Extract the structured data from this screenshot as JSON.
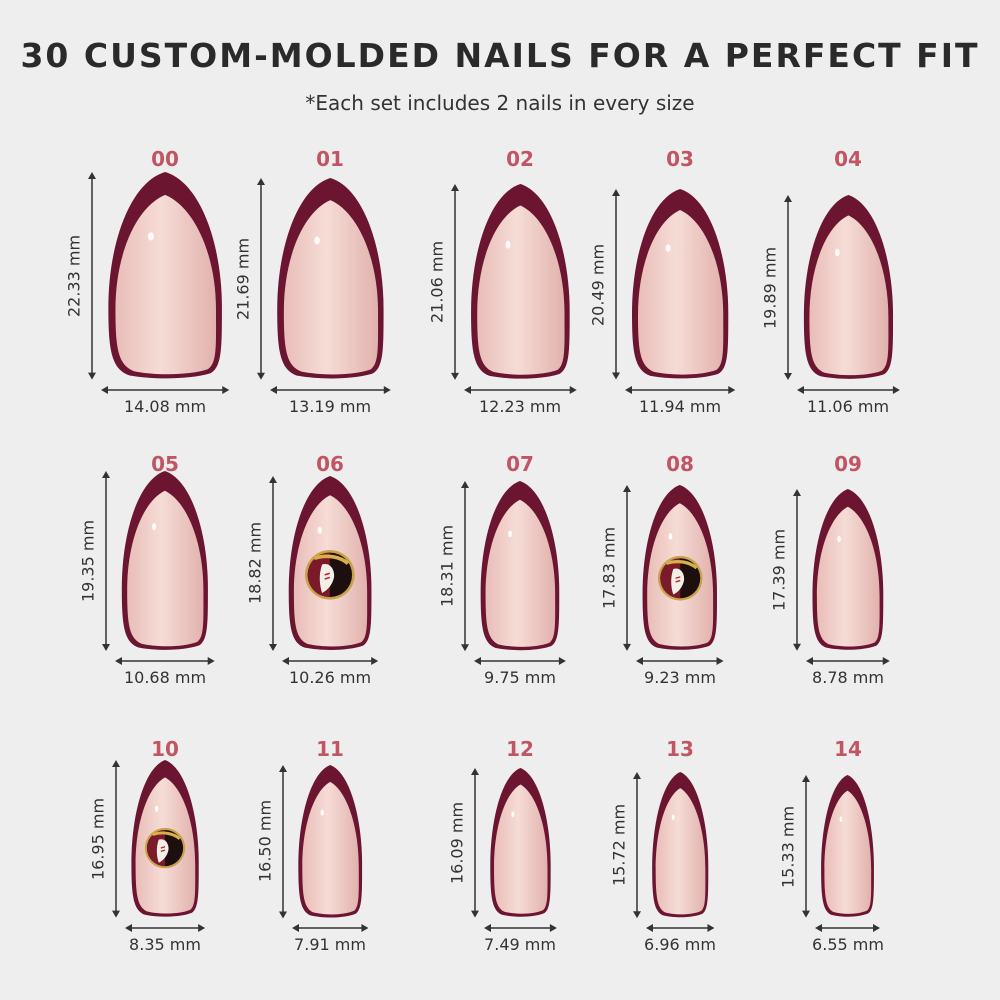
{
  "title": "30 CUSTOM-MOLDED NAILS FOR A PERFECT FIT",
  "subtitle": "*Each set includes 2 nails in every size",
  "colors": {
    "tip": "#6b1530",
    "body": "#f1cbc6",
    "size_label": "#c05563",
    "background": "#efeeef"
  },
  "nails": [
    {
      "size": "00",
      "length": "22.33 mm",
      "width": "14.08 mm",
      "length_mm": 22.33,
      "width_mm": 14.08,
      "emblem": false
    },
    {
      "size": "01",
      "length": "21.69 mm",
      "width": "13.19 mm",
      "length_mm": 21.69,
      "width_mm": 13.19,
      "emblem": false
    },
    {
      "size": "02",
      "length": "21.06 mm",
      "width": "12.23 mm",
      "length_mm": 21.06,
      "width_mm": 12.23,
      "emblem": false
    },
    {
      "size": "03",
      "length": "20.49 mm",
      "width": "11.94 mm",
      "length_mm": 20.49,
      "width_mm": 11.94,
      "emblem": false
    },
    {
      "size": "04",
      "length": "19.89 mm",
      "width": "11.06 mm",
      "length_mm": 19.89,
      "width_mm": 11.06,
      "emblem": false
    },
    {
      "size": "05",
      "length": "19.35 mm",
      "width": "10.68 mm",
      "length_mm": 19.35,
      "width_mm": 10.68,
      "emblem": false
    },
    {
      "size": "06",
      "length": "18.82 mm",
      "width": "10.26 mm",
      "length_mm": 18.82,
      "width_mm": 10.26,
      "emblem": true
    },
    {
      "size": "07",
      "length": "18.31 mm",
      "width": "9.75 mm",
      "length_mm": 18.31,
      "width_mm": 9.75,
      "emblem": false
    },
    {
      "size": "08",
      "length": "17.83 mm",
      "width": "9.23 mm",
      "length_mm": 17.83,
      "width_mm": 9.23,
      "emblem": true
    },
    {
      "size": "09",
      "length": "17.39 mm",
      "width": "8.78 mm",
      "length_mm": 17.39,
      "width_mm": 8.78,
      "emblem": false
    },
    {
      "size": "10",
      "length": "16.95 mm",
      "width": "8.35 mm",
      "length_mm": 16.95,
      "width_mm": 8.35,
      "emblem": true
    },
    {
      "size": "11",
      "length": "16.50 mm",
      "width": "7.91 mm",
      "length_mm": 16.5,
      "width_mm": 7.91,
      "emblem": false
    },
    {
      "size": "12",
      "length": "16.09 mm",
      "width": "7.49 mm",
      "length_mm": 16.09,
      "width_mm": 7.49,
      "emblem": false
    },
    {
      "size": "13",
      "length": "15.72 mm",
      "width": "6.96 mm",
      "length_mm": 15.72,
      "width_mm": 6.96,
      "emblem": false
    },
    {
      "size": "14",
      "length": "15.33 mm",
      "width": "6.55 mm",
      "length_mm": 15.33,
      "width_mm": 6.55,
      "emblem": false
    }
  ]
}
